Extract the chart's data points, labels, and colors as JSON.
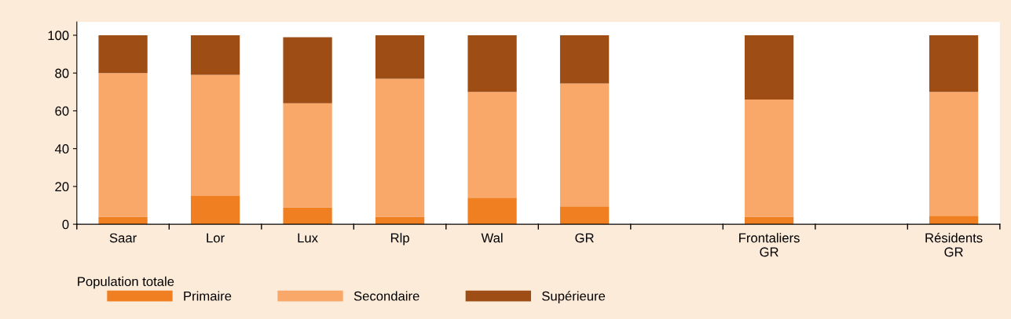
{
  "chart_data": {
    "type": "bar",
    "stacked": true,
    "categories": [
      "Saar",
      "Lor",
      "Lux",
      "Rlp",
      "Wal",
      "GR",
      null,
      "Frontaliers\nGR",
      null,
      "Résidents\nGR"
    ],
    "series": [
      {
        "name": "Primaire",
        "color": "#f07f22",
        "values": [
          4,
          15,
          9,
          4,
          14,
          9.5,
          null,
          4,
          null,
          4.5
        ]
      },
      {
        "name": "Secondaire",
        "color": "#f9a86a",
        "values": [
          76,
          64,
          55,
          73,
          56,
          65,
          null,
          62,
          null,
          65.5
        ]
      },
      {
        "name": "Supérieure",
        "color": "#9e4d14",
        "values": [
          20,
          21,
          35,
          23,
          30,
          25.5,
          null,
          34,
          null,
          30
        ]
      }
    ],
    "ylim": [
      0,
      107
    ],
    "yticks": [
      0,
      20,
      40,
      60,
      80,
      100
    ],
    "annotations": [
      "Population totale"
    ],
    "legend": "bottom",
    "grid": false
  }
}
